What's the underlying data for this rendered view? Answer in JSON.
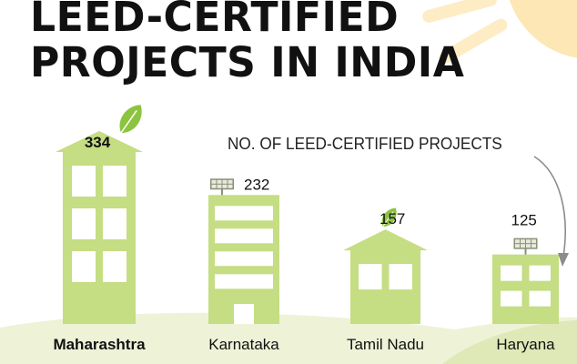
{
  "title_line1": "LEED-CERTIFIED",
  "title_line2": "PROJECTS IN INDIA",
  "colors": {
    "building": "#c5dd83",
    "window": "#ffffff",
    "ground": "#eef3d8",
    "leaf": "#8cc43f",
    "solar_panel": "#8a8f7a",
    "sun": "#fde7b4",
    "ray": "#fdecc4",
    "arrow": "#8c8c8c"
  },
  "chart_data": {
    "type": "bar",
    "title": "NO. OF LEED-CERTIFIED PROJECTS",
    "categories": [
      "Maharashtra",
      "Karnataka",
      "Tamil Nadu",
      "Haryana"
    ],
    "values": [
      334,
      232,
      157,
      125
    ],
    "value_labels": [
      "334",
      "232",
      "157",
      "125"
    ],
    "emphasis_category": "Maharashtra",
    "rooftop_icons": [
      "leaf-icon",
      "solar-panel-icon",
      "leaf-icon",
      "solar-panel-icon"
    ],
    "grid": false,
    "legend": "none"
  }
}
